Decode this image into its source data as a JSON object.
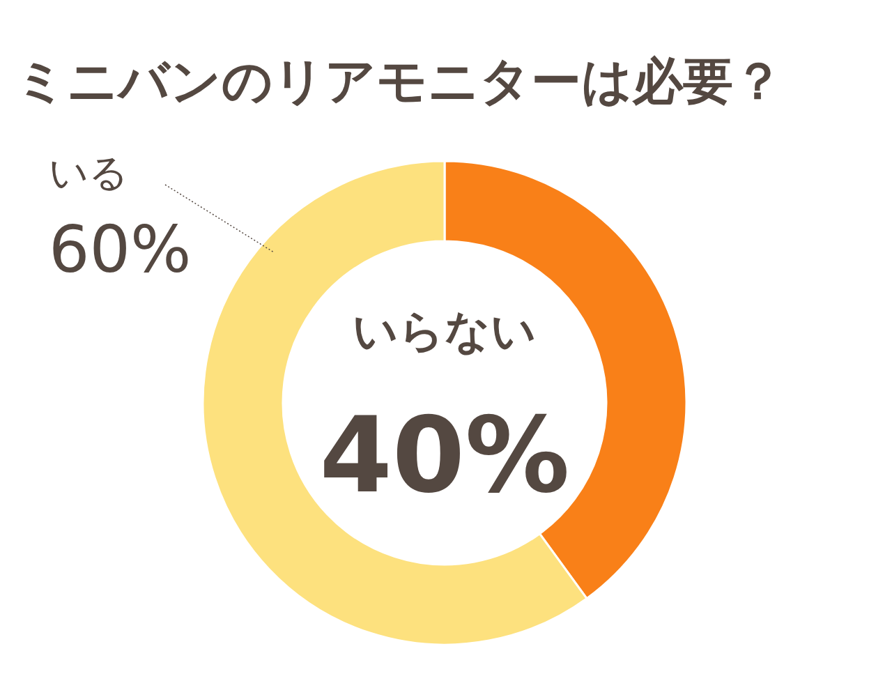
{
  "chart_data": {
    "type": "donut",
    "title": "ミニバンのリアモニターは必要？",
    "categories": [
      "いらない",
      "いる"
    ],
    "values": [
      40,
      60
    ],
    "colors": [
      "#f98018",
      "#fde17e"
    ],
    "value_labels": [
      "40%",
      "60%"
    ]
  }
}
